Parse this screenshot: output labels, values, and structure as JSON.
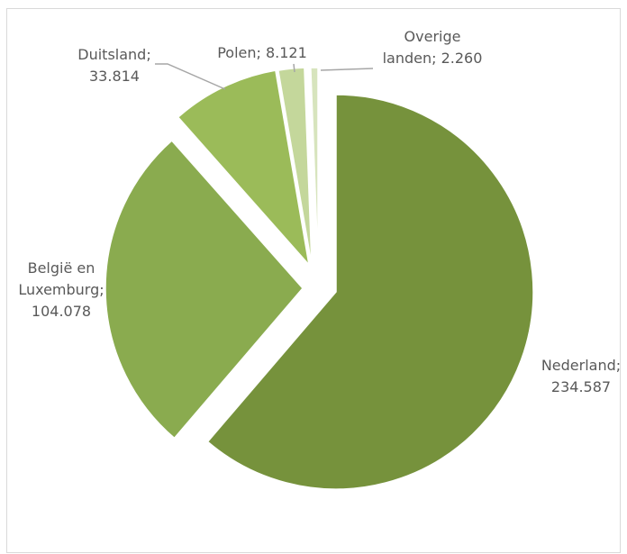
{
  "chart_data": {
    "type": "pie",
    "categories": [
      "Nederland",
      "België en Luxemburg",
      "Duitsland",
      "Polen",
      "Overige landen"
    ],
    "values": [
      234587,
      104078,
      33814,
      8121,
      2260
    ],
    "value_labels": [
      "234.587",
      "104.078",
      "33.814",
      "8.121",
      "2.260"
    ],
    "data_labels": [
      [
        "Nederland;",
        "234.587"
      ],
      [
        "België en",
        "Luxemburg;",
        "104.078"
      ],
      [
        "Duitsland;",
        "33.814"
      ],
      [
        "Polen; 8.121"
      ],
      [
        "Overige",
        "landen; 2.260"
      ]
    ],
    "colors": [
      "#76923c",
      "#8aab4f",
      "#9bbb59",
      "#c4d79b",
      "#d7e4bd"
    ],
    "exploded": true,
    "start_angle": "12 o'clock",
    "direction": "clockwise",
    "legend": "none"
  }
}
